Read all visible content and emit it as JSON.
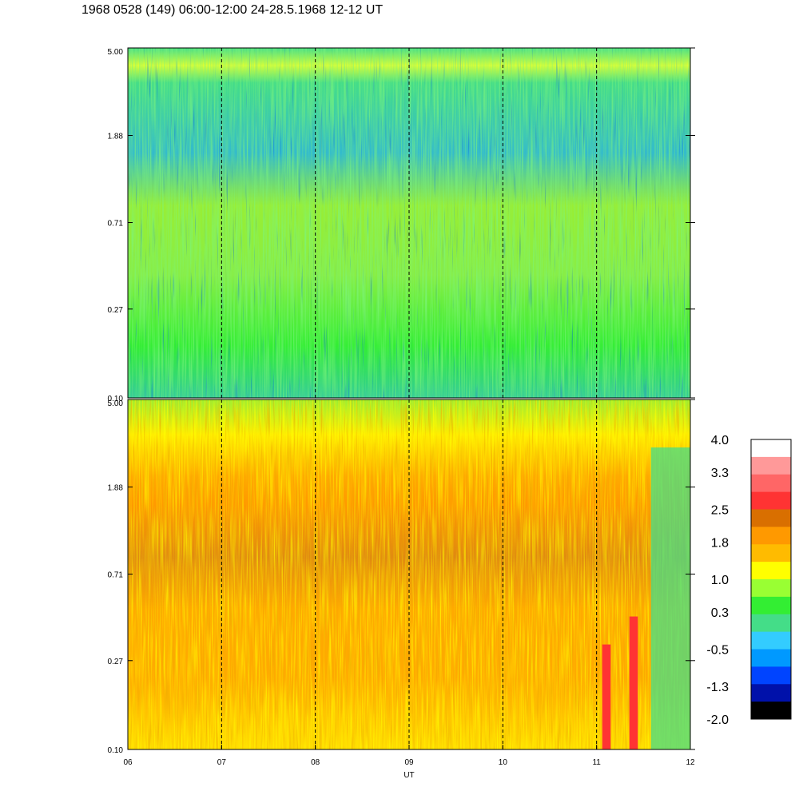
{
  "title": "1968 0528 (149) 06:00-12:00 24-28.5.1968  12-12 UT",
  "chart_data": {
    "type": "heatmap",
    "xlabel": "UT",
    "x_ticks": [
      "06",
      "07",
      "08",
      "09",
      "10",
      "11",
      "12"
    ],
    "x_range": [
      6,
      12
    ],
    "grid": "dashed vertical lines at each hour",
    "panels": [
      {
        "name": "upper",
        "y_ticks": [
          "5.00",
          "1.88",
          "0.71",
          "0.27",
          "0.10"
        ],
        "y_scale": "log",
        "y_range": [
          0.1,
          5.0
        ],
        "dominant_colors": "green, yellow, cyan with dark blue streaks"
      },
      {
        "name": "lower",
        "y_ticks": [
          "5.00",
          "1.88",
          "0.71",
          "0.27",
          "0.10"
        ],
        "y_scale": "log",
        "y_range": [
          0.1,
          5.0
        ],
        "dominant_colors": "orange and yellow with red bands near 11 UT"
      }
    ],
    "colorbar": {
      "labels": [
        "4.0",
        "3.3",
        "2.5",
        "1.8",
        "1.0",
        "0.3",
        "-0.5",
        "-1.3",
        "-2.0"
      ],
      "range": [
        -2.0,
        4.0
      ],
      "colors": [
        "#ffffff",
        "#ff9999",
        "#ff6666",
        "#ff3333",
        "#d96f00",
        "#ff9900",
        "#ffbb00",
        "#ffff00",
        "#99ff33",
        "#33ee33",
        "#44dd88",
        "#33ccff",
        "#0099ff",
        "#0044ff",
        "#0011aa",
        "#000000"
      ]
    }
  }
}
